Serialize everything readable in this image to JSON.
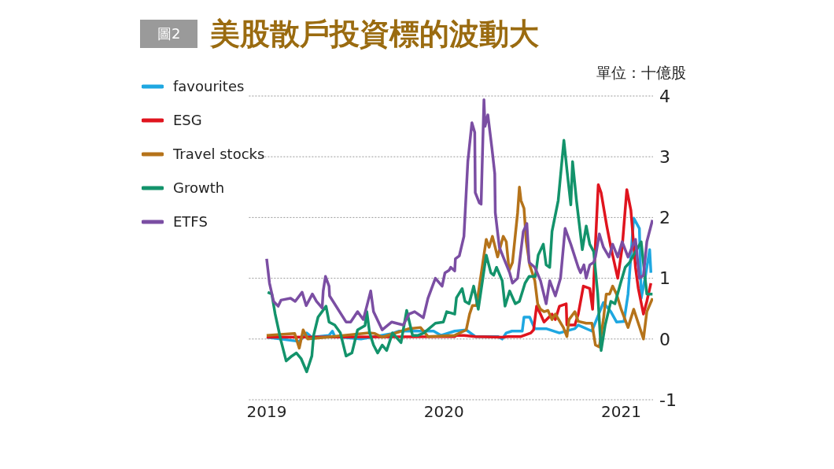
{
  "chart_data": {
    "type": "line",
    "title": "美股散戶投資標的波動大",
    "ylabel": "單位：十億股",
    "annotations": [
      "圖2"
    ],
    "xlim": [
      2018.9,
      2021.18
    ],
    "xticks": [
      2019,
      2020,
      2021
    ],
    "ylim": [
      -1,
      4
    ],
    "yticks": [
      -1,
      0,
      1,
      2,
      3,
      4
    ],
    "grid": "y",
    "legend": "top left",
    "marker": "none",
    "line_style": "solid",
    "series": [
      {
        "name": "favourites",
        "color": "#1ea7e1",
        "x": [
          2019.0,
          2019.184,
          2019.226,
          2019.255,
          2019.352,
          2019.371,
          2019.384,
          2019.532,
          2019.706,
          2019.748,
          2019.942,
          2019.984,
          2020.061,
          2020.126,
          2020.177,
          2020.306,
          2020.329,
          2020.352,
          2020.384,
          2020.442,
          2020.452,
          2020.484,
          2020.513,
          2020.577,
          2020.652,
          2020.739,
          2020.758,
          2020.835,
          2020.9,
          2020.942,
          2020.974,
          2021.016,
          2021.039,
          2021.071,
          2021.103,
          2021.113,
          2021.135,
          2021.161,
          2021.168
        ],
        "values": [
          0.03,
          -0.04,
          0.1,
          0.03,
          0.06,
          0.13,
          0.04,
          0,
          0.09,
          0.13,
          0.13,
          0.06,
          0.13,
          0.15,
          0.04,
          0.04,
          0,
          0.1,
          0.13,
          0.13,
          0.36,
          0.36,
          0.17,
          0.17,
          0.1,
          0.17,
          0.23,
          0.13,
          0.6,
          0.45,
          0.28,
          0.29,
          0.74,
          1.99,
          1.82,
          0.67,
          1.0,
          1.47,
          1.09
        ]
      },
      {
        "name": "ESG",
        "color": "#e0141e",
        "x": [
          2019.0,
          2020.061,
          2020.071,
          2020.113,
          2020.177,
          2020.329,
          2020.361,
          2020.435,
          2020.49,
          2020.506,
          2020.523,
          2020.545,
          2020.565,
          2020.61,
          2020.629,
          2020.652,
          2020.69,
          2020.694,
          2020.739,
          2020.758,
          2020.787,
          2020.823,
          2020.839,
          2020.852,
          2020.871,
          2020.887,
          2020.919,
          2020.942,
          2020.981,
          2021.006,
          2021.032,
          2021.055,
          2021.081,
          2021.097,
          2021.126,
          2021.145,
          2021.168
        ],
        "values": [
          0.03,
          0.04,
          0.06,
          0.06,
          0.04,
          0.03,
          0.04,
          0.04,
          0.1,
          0.15,
          0.54,
          0.41,
          0.28,
          0.41,
          0.32,
          0.54,
          0.58,
          0.23,
          0.23,
          0.41,
          0.87,
          0.83,
          0.49,
          1.38,
          2.54,
          2.41,
          1.86,
          1.51,
          1.0,
          1.51,
          2.46,
          2.12,
          1.18,
          0.83,
          0.41,
          0.62,
          0.92
        ]
      },
      {
        "name": "Travel stocks",
        "color": "#b5731a",
        "x": [
          2019.0,
          2019.158,
          2019.184,
          2019.206,
          2019.232,
          2019.339,
          2019.577,
          2019.61,
          2019.652,
          2019.803,
          2019.868,
          2019.91,
          2020.061,
          2020.126,
          2020.145,
          2020.161,
          2020.184,
          2020.239,
          2020.255,
          2020.274,
          2020.303,
          2020.335,
          2020.352,
          2020.368,
          2020.387,
          2020.416,
          2020.426,
          2020.435,
          2020.452,
          2020.465,
          2020.484,
          2020.513,
          2020.529,
          2020.545,
          2020.565,
          2020.587,
          2020.61,
          2020.629,
          2020.674,
          2020.694,
          2020.706,
          2020.739,
          2020.758,
          2020.803,
          2020.835,
          2020.855,
          2020.877,
          2020.9,
          2020.916,
          2020.935,
          2020.952,
          2020.974,
          2021.0,
          2021.039,
          2021.071,
          2021.126,
          2021.145,
          2021.177
        ],
        "values": [
          0.06,
          0.09,
          -0.15,
          0.15,
          0,
          0.03,
          0.1,
          0.09,
          0.03,
          0.17,
          0.19,
          0.04,
          0.06,
          0.15,
          0.41,
          0.55,
          0.55,
          1.64,
          1.51,
          1.69,
          1.35,
          1.69,
          1.6,
          1.13,
          1.26,
          2.08,
          2.5,
          2.28,
          2.15,
          1.6,
          1.22,
          0.96,
          0.58,
          0.49,
          0.45,
          0.47,
          0.32,
          0.41,
          0.19,
          0.04,
          0.32,
          0.45,
          0.29,
          0.26,
          0.26,
          -0.1,
          -0.13,
          0.32,
          0.74,
          0.74,
          0.87,
          0.74,
          0.49,
          0.19,
          0.49,
          0,
          0.45,
          0.67
        ]
      },
      {
        "name": "Growth",
        "color": "#13936b",
        "x": [
          2019.006,
          2019.029,
          2019.048,
          2019.081,
          2019.11,
          2019.142,
          2019.168,
          2019.194,
          2019.226,
          2019.255,
          2019.265,
          2019.29,
          2019.335,
          2019.352,
          2019.384,
          2019.416,
          2019.448,
          2019.481,
          2019.513,
          2019.555,
          2019.565,
          2019.581,
          2019.603,
          2019.626,
          2019.652,
          2019.677,
          2019.71,
          2019.758,
          2019.79,
          2019.823,
          2019.855,
          2019.887,
          2019.952,
          2019.997,
          2020.016,
          2020.061,
          2020.071,
          2020.103,
          2020.119,
          2020.142,
          2020.168,
          2020.194,
          2020.239,
          2020.265,
          2020.281,
          2020.297,
          2020.329,
          2020.345,
          2020.371,
          2020.403,
          2020.426,
          2020.458,
          2020.481,
          2020.516,
          2020.532,
          2020.561,
          2020.577,
          2020.597,
          2020.61,
          2020.645,
          2020.677,
          2020.694,
          2020.716,
          2020.726,
          2020.748,
          2020.781,
          2020.803,
          2020.823,
          2020.845,
          2020.868,
          2020.887,
          2020.91,
          2020.942,
          2020.965,
          2020.997,
          2021.023,
          2021.048,
          2021.081,
          2021.113,
          2021.145,
          2021.177
        ],
        "values": [
          0.77,
          0.74,
          0.41,
          -0.03,
          -0.36,
          -0.28,
          -0.23,
          -0.32,
          -0.54,
          -0.28,
          0.06,
          0.36,
          0.54,
          0.28,
          0.23,
          0.1,
          -0.28,
          -0.23,
          0.15,
          0.22,
          0.45,
          0.1,
          -0.1,
          -0.23,
          -0.1,
          -0.19,
          0.1,
          -0.06,
          0.47,
          0.06,
          0.06,
          0.1,
          0.26,
          0.28,
          0.45,
          0.41,
          0.68,
          0.83,
          0.62,
          0.58,
          0.87,
          0.49,
          1.38,
          1.09,
          1.05,
          1.18,
          0.96,
          0.54,
          0.79,
          0.58,
          0.62,
          0.92,
          1.03,
          1.03,
          1.38,
          1.56,
          1.22,
          1.18,
          1.77,
          2.28,
          3.27,
          2.79,
          2.21,
          2.92,
          2.28,
          1.47,
          1.86,
          1.56,
          1.44,
          0.74,
          -0.19,
          0.23,
          0.62,
          0.58,
          0.92,
          1.18,
          1.26,
          1.44,
          1.6,
          0.74,
          0.74
        ]
      },
      {
        "name": "ETFS",
        "color": "#7b4ea3",
        "x": [
          2019.0,
          2019.016,
          2019.039,
          2019.065,
          2019.081,
          2019.135,
          2019.161,
          2019.2,
          2019.223,
          2019.258,
          2019.281,
          2019.313,
          2019.319,
          2019.332,
          2019.352,
          2019.355,
          2019.448,
          2019.474,
          2019.513,
          2019.545,
          2019.565,
          2019.587,
          2019.603,
          2019.652,
          2019.706,
          2019.771,
          2019.803,
          2019.835,
          2019.884,
          2019.91,
          2019.952,
          2019.99,
          2020.006,
          2020.029,
          2020.039,
          2020.061,
          2020.065,
          2020.087,
          2020.113,
          2020.135,
          2020.158,
          2020.174,
          2020.177,
          2020.2,
          2020.21,
          2020.226,
          2020.232,
          2020.248,
          2020.271,
          2020.287,
          2020.29,
          2020.313,
          2020.339,
          2020.371,
          2020.387,
          2020.416,
          2020.448,
          2020.468,
          2020.481,
          2020.513,
          2020.545,
          2020.577,
          2020.597,
          2020.629,
          2020.658,
          2020.684,
          2020.716,
          2020.758,
          2020.771,
          2020.79,
          2020.803,
          2020.823,
          2020.845,
          2020.855,
          2020.877,
          2020.9,
          2020.932,
          2020.952,
          2020.981,
          2021.006,
          2021.039,
          2021.081,
          2021.103,
          2021.126,
          2021.145,
          2021.177
        ],
        "values": [
          1.32,
          0.92,
          0.62,
          0.54,
          0.64,
          0.67,
          0.62,
          0.77,
          0.55,
          0.74,
          0.62,
          0.51,
          0.79,
          1.03,
          0.87,
          0.71,
          0.28,
          0.28,
          0.45,
          0.32,
          0.54,
          0.79,
          0.45,
          0.15,
          0.28,
          0.23,
          0.41,
          0.45,
          0.35,
          0.67,
          1.0,
          0.87,
          1.09,
          1.13,
          1.18,
          1.12,
          1.32,
          1.37,
          1.69,
          2.92,
          3.56,
          3.4,
          2.41,
          2.24,
          2.22,
          3.94,
          3.5,
          3.69,
          3.14,
          2.72,
          2.08,
          1.51,
          1.32,
          1.09,
          0.92,
          1.0,
          1.77,
          1.9,
          1.26,
          1.18,
          0.96,
          0.58,
          0.96,
          0.71,
          1.0,
          1.82,
          1.56,
          1.18,
          1.09,
          1.22,
          1.0,
          1.22,
          1.26,
          1.35,
          1.73,
          1.51,
          1.35,
          1.56,
          1.35,
          1.6,
          1.35,
          1.64,
          1.0,
          1.05,
          1.6,
          1.96
        ]
      }
    ]
  }
}
